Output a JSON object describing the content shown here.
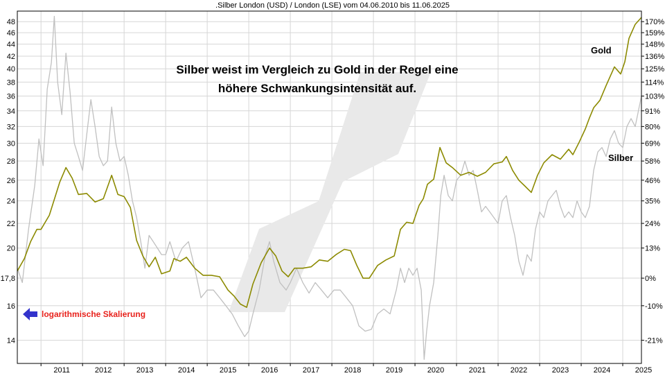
{
  "chart_data": {
    "type": "line",
    "title": ".Silber London (USD) / London (LSE) vom 04.06.2010 bis 11.06.2025",
    "annotation_lines": [
      "Silber weist im Vergleich zu Gold in der Regel eine",
      "höhere Schwankungsintensität auf."
    ],
    "scale_note": "logarithmische Skalierung",
    "y_scale": "log",
    "ylim": [
      12.8,
      50
    ],
    "y_ticks_left": [
      "14",
      "16",
      "17,8",
      "20",
      "22",
      "24",
      "26",
      "28",
      "30",
      "32",
      "34",
      "36",
      "38",
      "40",
      "42",
      "44",
      "46",
      "48"
    ],
    "y_ticks_right": [
      "-21%",
      "-10%",
      "0%",
      "13%",
      "24%",
      "35%",
      "46%",
      "58%",
      "69%",
      "80%",
      "91%",
      "103%",
      "114%",
      "125%",
      "136%",
      "148%",
      "159%",
      "170%"
    ],
    "x_ticks": [
      "2011",
      "2012",
      "2013",
      "2014",
      "2015",
      "2016",
      "2017",
      "2018",
      "2019",
      "2020",
      "2021",
      "2022",
      "2023",
      "2024",
      "2025"
    ],
    "xlim": [
      2010.43,
      2025.45
    ],
    "grid": true,
    "series": [
      {
        "name": "Gold",
        "color": "#8c8a00",
        "x": [
          2010.43,
          2010.6,
          2010.75,
          2010.9,
          2011.0,
          2011.2,
          2011.45,
          2011.6,
          2011.75,
          2011.9,
          2012.1,
          2012.3,
          2012.5,
          2012.7,
          2012.85,
          2013.0,
          2013.15,
          2013.3,
          2013.45,
          2013.6,
          2013.75,
          2013.9,
          2014.1,
          2014.2,
          2014.35,
          2014.5,
          2014.7,
          2014.9,
          2015.1,
          2015.3,
          2015.5,
          2015.65,
          2015.8,
          2015.95,
          2016.1,
          2016.3,
          2016.5,
          2016.65,
          2016.8,
          2016.95,
          2017.1,
          2017.3,
          2017.5,
          2017.7,
          2017.9,
          2018.1,
          2018.3,
          2018.45,
          2018.6,
          2018.75,
          2018.9,
          2019.1,
          2019.3,
          2019.5,
          2019.65,
          2019.8,
          2019.95,
          2020.1,
          2020.2,
          2020.3,
          2020.45,
          2020.6,
          2020.75,
          2020.9,
          2021.1,
          2021.3,
          2021.5,
          2021.7,
          2021.9,
          2022.1,
          2022.2,
          2022.35,
          2022.5,
          2022.65,
          2022.8,
          2022.95,
          2023.1,
          2023.3,
          2023.5,
          2023.7,
          2023.8,
          2023.95,
          2024.1,
          2024.2,
          2024.3,
          2024.45,
          2024.6,
          2024.8,
          2024.95,
          2025.05,
          2025.15,
          2025.3,
          2025.45
        ],
        "values": [
          18.3,
          19.2,
          20.5,
          21.5,
          21.5,
          22.7,
          25.8,
          27.3,
          26.2,
          24.6,
          24.7,
          23.9,
          24.2,
          26.5,
          24.6,
          24.4,
          23.4,
          20.6,
          19.4,
          18.6,
          19.3,
          18.1,
          18.3,
          19.2,
          19.0,
          19.3,
          18.5,
          18.0,
          18.0,
          17.9,
          17.0,
          16.6,
          16.1,
          15.9,
          17.4,
          18.9,
          20.0,
          19.4,
          18.3,
          17.9,
          18.5,
          18.5,
          18.6,
          19.1,
          19.0,
          19.5,
          19.9,
          19.8,
          18.7,
          17.8,
          17.8,
          18.7,
          19.1,
          19.4,
          21.5,
          22.1,
          22.0,
          23.6,
          24.2,
          25.6,
          26.1,
          29.5,
          27.8,
          27.3,
          26.5,
          26.8,
          26.4,
          26.8,
          27.7,
          27.9,
          28.5,
          27.0,
          26.0,
          25.4,
          24.8,
          26.5,
          27.8,
          28.7,
          28.2,
          29.3,
          28.7,
          30.1,
          31.7,
          33.1,
          34.4,
          35.4,
          37.5,
          40.3,
          39.2,
          41.1,
          45.0,
          47.5,
          48.8
        ]
      },
      {
        "name": "Silber",
        "color": "#c0c0c0",
        "x": [
          2010.43,
          2010.55,
          2010.7,
          2010.85,
          2010.95,
          2011.05,
          2011.15,
          2011.25,
          2011.32,
          2011.4,
          2011.5,
          2011.6,
          2011.7,
          2011.8,
          2011.9,
          2012.0,
          2012.1,
          2012.2,
          2012.3,
          2012.4,
          2012.5,
          2012.6,
          2012.7,
          2012.8,
          2012.9,
          2013.0,
          2013.1,
          2013.2,
          2013.3,
          2013.4,
          2013.5,
          2013.6,
          2013.7,
          2013.8,
          2013.9,
          2014.0,
          2014.1,
          2014.25,
          2014.4,
          2014.55,
          2014.7,
          2014.85,
          2015.0,
          2015.15,
          2015.3,
          2015.45,
          2015.6,
          2015.75,
          2015.9,
          2016.0,
          2016.1,
          2016.25,
          2016.4,
          2016.5,
          2016.6,
          2016.75,
          2016.9,
          2017.0,
          2017.15,
          2017.3,
          2017.45,
          2017.6,
          2017.75,
          2017.9,
          2018.05,
          2018.2,
          2018.35,
          2018.5,
          2018.65,
          2018.8,
          2018.95,
          2019.1,
          2019.25,
          2019.4,
          2019.55,
          2019.65,
          2019.75,
          2019.85,
          2019.95,
          2020.05,
          2020.15,
          2020.22,
          2020.28,
          2020.35,
          2020.45,
          2020.55,
          2020.62,
          2020.7,
          2020.8,
          2020.9,
          2021.0,
          2021.1,
          2021.2,
          2021.3,
          2021.4,
          2021.5,
          2021.6,
          2021.7,
          2021.8,
          2021.9,
          2022.0,
          2022.1,
          2022.2,
          2022.3,
          2022.4,
          2022.5,
          2022.6,
          2022.7,
          2022.8,
          2022.9,
          2023.0,
          2023.1,
          2023.2,
          2023.3,
          2023.4,
          2023.5,
          2023.6,
          2023.7,
          2023.8,
          2023.9,
          2024.0,
          2024.1,
          2024.2,
          2024.3,
          2024.4,
          2024.5,
          2024.6,
          2024.7,
          2024.8,
          2024.9,
          2025.0,
          2025.1,
          2025.2,
          2025.3,
          2025.45
        ],
        "values": [
          18.5,
          17.5,
          21.5,
          25.5,
          30.5,
          27.5,
          37.0,
          41.0,
          49.0,
          38.0,
          33.5,
          42.5,
          36.5,
          30.0,
          28.5,
          27.0,
          31.0,
          35.5,
          32.0,
          28.5,
          27.5,
          28.0,
          34.5,
          30.0,
          28.0,
          28.5,
          26.5,
          24.0,
          22.5,
          20.5,
          18.5,
          21.0,
          20.5,
          20.0,
          19.5,
          19.5,
          20.5,
          19.0,
          20.0,
          20.5,
          18.5,
          16.5,
          17.0,
          17.0,
          16.5,
          16.0,
          15.5,
          14.8,
          14.2,
          14.5,
          15.5,
          17.0,
          19.5,
          20.5,
          19.0,
          17.5,
          17.0,
          17.5,
          18.5,
          17.5,
          16.8,
          17.5,
          17.0,
          16.5,
          17.0,
          17.0,
          16.5,
          16.0,
          14.8,
          14.5,
          14.6,
          15.5,
          15.8,
          15.5,
          17.0,
          18.5,
          17.5,
          18.5,
          18.0,
          18.5,
          17.0,
          13.0,
          14.5,
          16.0,
          17.5,
          21.0,
          24.5,
          26.5,
          24.5,
          24.0,
          26.0,
          26.5,
          28.0,
          26.5,
          27.0,
          25.0,
          23.0,
          23.5,
          23.0,
          22.5,
          22.0,
          24.0,
          24.5,
          22.5,
          21.0,
          19.0,
          18.0,
          19.5,
          19.0,
          21.5,
          23.0,
          22.5,
          24.0,
          24.5,
          25.0,
          23.5,
          22.5,
          23.0,
          22.5,
          24.0,
          23.0,
          22.5,
          23.5,
          27.0,
          29.0,
          29.5,
          28.5,
          30.5,
          31.5,
          30.0,
          29.5,
          32.0,
          33.0,
          32.0,
          36.0
        ]
      }
    ]
  }
}
